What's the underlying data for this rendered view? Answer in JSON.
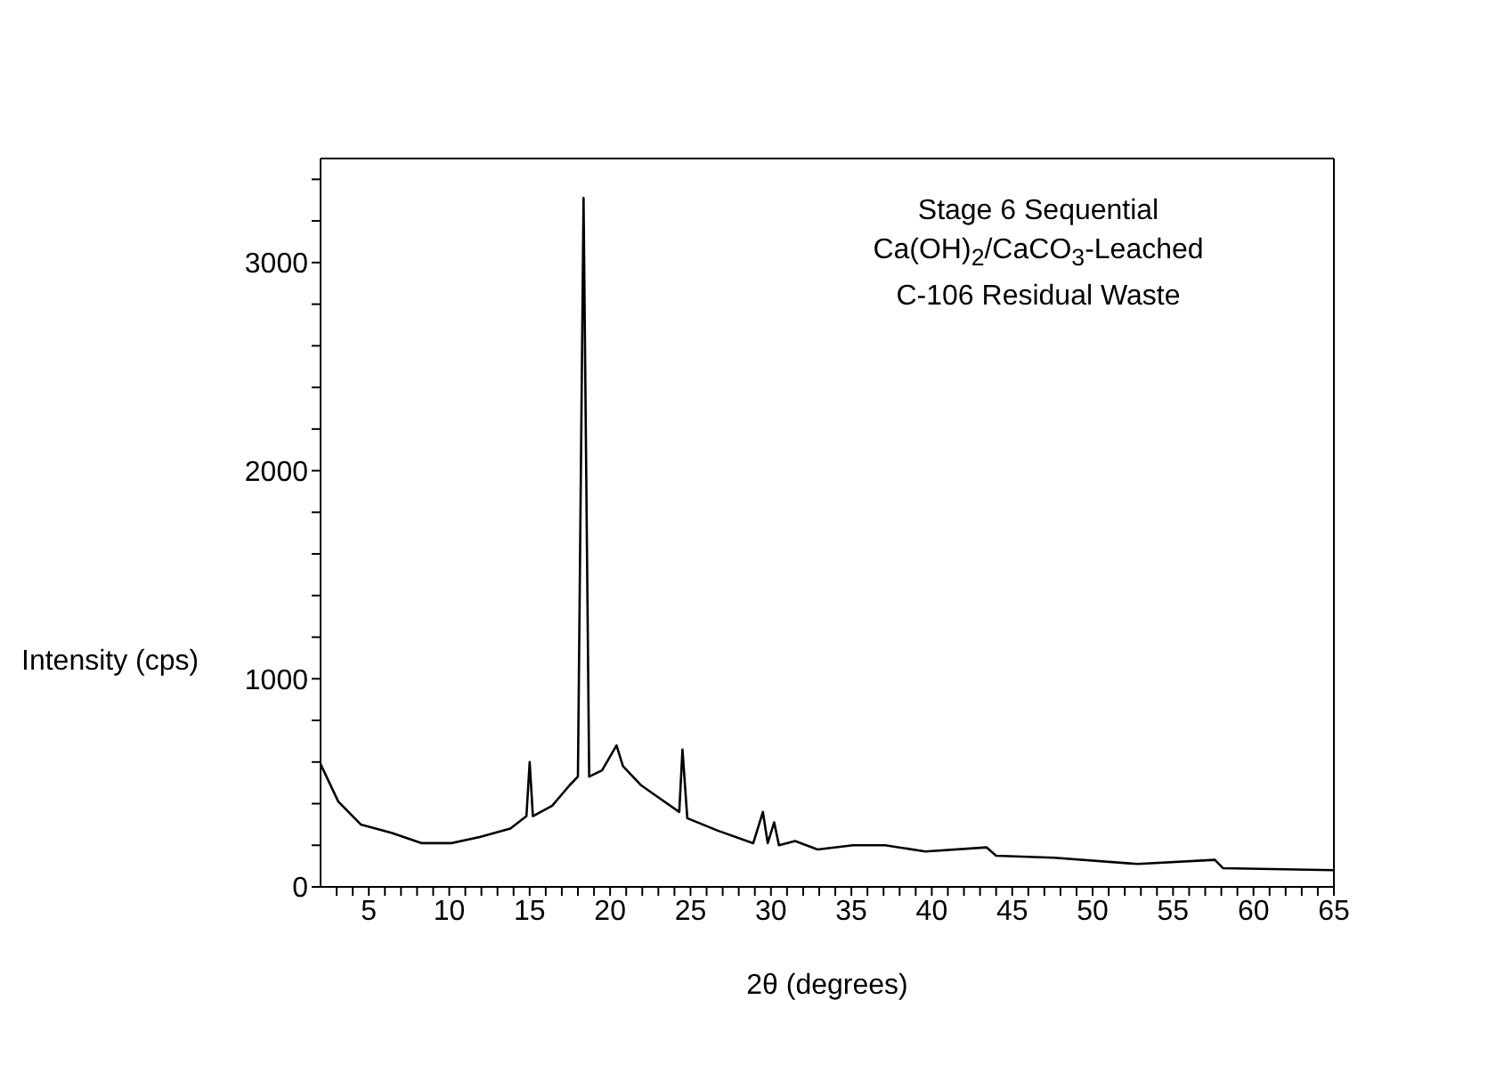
{
  "chart_data": {
    "type": "line",
    "xlabel": "2θ (degrees)",
    "ylabel": "Intensity (cps)",
    "annotations": [
      "Stage 6 Sequential",
      "Ca(OH)$_{2}$/CaCO$_{3}$-Leached",
      "C-106 Residual Waste"
    ],
    "xlim": [
      2,
      65
    ],
    "ylim": [
      0,
      3500
    ],
    "xticks": [
      {
        "value": 3,
        "label": null
      },
      {
        "value": 4,
        "label": null
      },
      5,
      {
        "value": 6,
        "label": null
      },
      {
        "value": 7,
        "label": null
      },
      {
        "value": 8,
        "label": null
      },
      {
        "value": 9,
        "label": null
      },
      10,
      {
        "value": 11,
        "label": null
      },
      {
        "value": 12,
        "label": null
      },
      {
        "value": 13,
        "label": null
      },
      {
        "value": 14,
        "label": null
      },
      15,
      {
        "value": 16,
        "label": null
      },
      {
        "value": 17,
        "label": null
      },
      {
        "value": 18,
        "label": null
      },
      {
        "value": 19,
        "label": null
      },
      20,
      {
        "value": 21,
        "label": null
      },
      {
        "value": 22,
        "label": null
      },
      {
        "value": 23,
        "label": null
      },
      {
        "value": 24,
        "label": null
      },
      25,
      {
        "value": 26,
        "label": null
      },
      {
        "value": 27,
        "label": null
      },
      {
        "value": 28,
        "label": null
      },
      {
        "value": 29,
        "label": null
      },
      30,
      {
        "value": 31,
        "label": null
      },
      {
        "value": 32,
        "label": null
      },
      {
        "value": 33,
        "label": null
      },
      {
        "value": 34,
        "label": null
      },
      35,
      {
        "value": 36,
        "label": null
      },
      {
        "value": 37,
        "label": null
      },
      {
        "value": 38,
        "label": null
      },
      {
        "value": 39,
        "label": null
      },
      40,
      {
        "value": 41,
        "label": null
      },
      {
        "value": 42,
        "label": null
      },
      {
        "value": 43,
        "label": null
      },
      {
        "value": 44,
        "label": null
      },
      45,
      {
        "value": 46,
        "label": null
      },
      {
        "value": 47,
        "label": null
      },
      {
        "value": 48,
        "label": null
      },
      {
        "value": 49,
        "label": null
      },
      50,
      {
        "value": 51,
        "label": null
      },
      {
        "value": 52,
        "label": null
      },
      {
        "value": 53,
        "label": null
      },
      {
        "value": 54,
        "label": null
      },
      55,
      {
        "value": 56,
        "label": null
      },
      {
        "value": 57,
        "label": null
      },
      {
        "value": 58,
        "label": null
      },
      {
        "value": 59,
        "label": null
      },
      60,
      {
        "value": 61,
        "label": null
      },
      {
        "value": 62,
        "label": null
      },
      {
        "value": 63,
        "label": null
      },
      {
        "value": 64,
        "label": null
      },
      65
    ],
    "yticks": [
      0,
      {
        "value": 200,
        "label": null
      },
      {
        "value": 400,
        "label": null
      },
      {
        "value": 600,
        "label": null
      },
      {
        "value": 800,
        "label": null
      },
      1000,
      {
        "value": 1200,
        "label": null
      },
      {
        "value": 1400,
        "label": null
      },
      {
        "value": 1600,
        "label": null
      },
      {
        "value": 1800,
        "label": null
      },
      2000,
      {
        "value": 2200,
        "label": null
      },
      {
        "value": 2400,
        "label": null
      },
      {
        "value": 2600,
        "label": null
      },
      {
        "value": 2800,
        "label": null
      },
      3000,
      {
        "value": 3200,
        "label": null
      },
      {
        "value": 3400,
        "label": null
      }
    ],
    "marker": "none",
    "line_style": "solid",
    "x": [
      2.0,
      3.1,
      4.5,
      6.4,
      8.3,
      10.1,
      11.9,
      13.8,
      14.8,
      15.0,
      15.2,
      16.4,
      17.5,
      18.0,
      18.35,
      18.7,
      19.5,
      20.4,
      20.8,
      21.9,
      23.0,
      24.3,
      24.5,
      24.8,
      26.7,
      28.9,
      29.5,
      29.8,
      30.2,
      30.5,
      31.5,
      32.9,
      35.1,
      37.1,
      39.6,
      43.4,
      44.0,
      47.6,
      52.8,
      57.6,
      58.1,
      65
    ],
    "series": [
      {
        "color": "#000000",
        "values": [
          590,
          410,
          300,
          260,
          210,
          210,
          240,
          280,
          340,
          600,
          340,
          390,
          490,
          530,
          3310,
          530,
          560,
          680,
          580,
          490,
          430,
          360,
          660,
          330,
          270,
          210,
          360,
          210,
          310,
          200,
          220,
          180,
          200,
          200,
          170,
          190,
          150,
          140,
          110,
          130,
          90,
          80
        ]
      }
    ]
  }
}
